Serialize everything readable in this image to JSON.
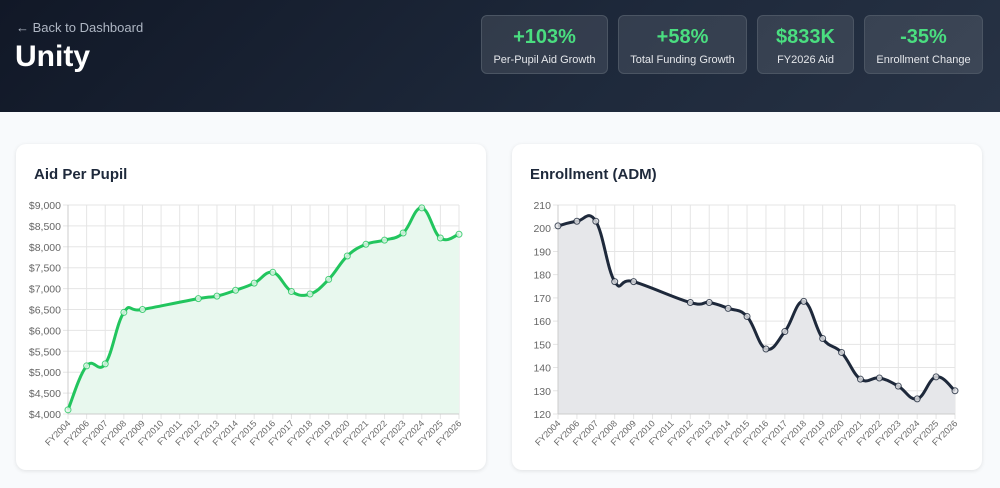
{
  "header": {
    "back_link": "← Back to Dashboard",
    "title": "Unity"
  },
  "stats": [
    {
      "value": "+103%",
      "label": "Per-Pupil Aid Growth"
    },
    {
      "value": "+58%",
      "label": "Total Funding Growth"
    },
    {
      "value": "$833K",
      "label": "FY2026 Aid"
    },
    {
      "value": "-35%",
      "label": "Enrollment Change"
    }
  ],
  "chart_data": [
    {
      "type": "area",
      "title": "Aid Per Pupil",
      "color": "#22c55e",
      "fill": "#e8f8ee",
      "categories": [
        "FY2004",
        "FY2006",
        "FY2007",
        "FY2008",
        "FY2009",
        "FY2010",
        "FY2011",
        "FY2012",
        "FY2013",
        "FY2014",
        "FY2015",
        "FY2016",
        "FY2017",
        "FY2018",
        "FY2019",
        "FY2020",
        "FY2021",
        "FY2022",
        "FY2023",
        "FY2024",
        "FY2025",
        "FY2026"
      ],
      "values": [
        4100,
        5150,
        5200,
        6430,
        6500,
        null,
        null,
        6760,
        6820,
        6960,
        7130,
        7390,
        6930,
        6870,
        7220,
        7780,
        8060,
        8160,
        8330,
        8930,
        8210,
        8300
      ],
      "ylim": [
        4000,
        9000
      ],
      "yticks": [
        4000,
        4500,
        5000,
        5500,
        6000,
        6500,
        7000,
        7500,
        8000,
        8500,
        9000
      ],
      "ytick_labels": [
        "$4,000",
        "$4,500",
        "$5,000",
        "$5,500",
        "$6,000",
        "$6,500",
        "$7,000",
        "$7,500",
        "$8,000",
        "$8,500",
        "$9,000"
      ]
    },
    {
      "type": "area",
      "title": "Enrollment (ADM)",
      "color": "#1e293b",
      "fill": "#e6e7ea",
      "categories": [
        "FY2004",
        "FY2006",
        "FY2007",
        "FY2008",
        "FY2009",
        "FY2010",
        "FY2011",
        "FY2012",
        "FY2013",
        "FY2014",
        "FY2015",
        "FY2016",
        "FY2017",
        "FY2018",
        "FY2019",
        "FY2020",
        "FY2021",
        "FY2022",
        "FY2023",
        "FY2024",
        "FY2025",
        "FY2026"
      ],
      "values": [
        201,
        203,
        203,
        177,
        177,
        null,
        null,
        168,
        168,
        165.5,
        162,
        148,
        155.5,
        168.5,
        152.5,
        146.5,
        135,
        135.5,
        132,
        126.5,
        136,
        130
      ],
      "ylim": [
        120,
        210
      ],
      "yticks": [
        120,
        130,
        140,
        150,
        160,
        170,
        180,
        190,
        200,
        210
      ],
      "ytick_labels": [
        "120",
        "130",
        "140",
        "150",
        "160",
        "170",
        "180",
        "190",
        "200",
        "210"
      ]
    }
  ]
}
